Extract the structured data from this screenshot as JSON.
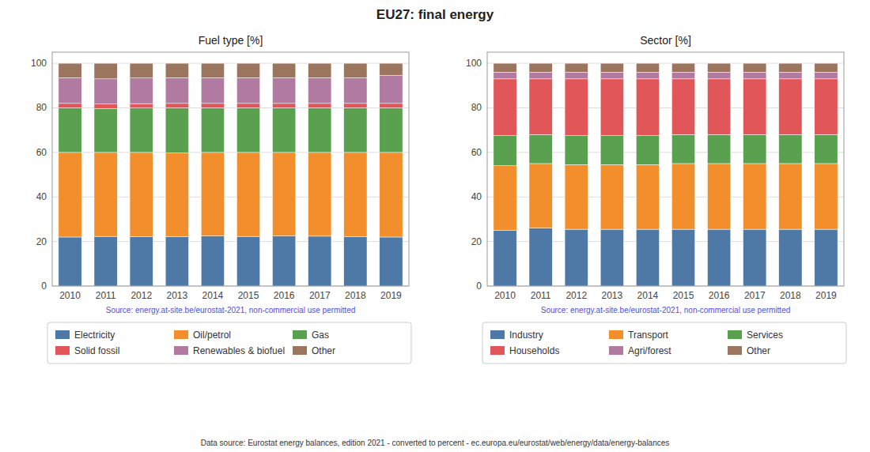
{
  "title": "EU27: final energy",
  "annotations": [
    "Data source: Eurostat energy balances, edition 2021 - converted to percent - ec.europa.eu/eurostat/web/energy/data/energy-balances"
  ],
  "chart_data": [
    {
      "type": "bar",
      "stacked": true,
      "title": "Fuel type [%]",
      "categories": [
        "2010",
        "2011",
        "2012",
        "2013",
        "2014",
        "2015",
        "2016",
        "2017",
        "2018",
        "2019"
      ],
      "series": [
        {
          "name": "Electricity",
          "values": [
            22.0,
            22.3,
            22.1,
            22.2,
            22.5,
            22.3,
            22.5,
            22.4,
            22.2,
            22.0
          ]
        },
        {
          "name": "Oil/petrol",
          "values": [
            38.0,
            37.7,
            37.9,
            37.5,
            37.5,
            37.7,
            37.5,
            37.6,
            37.8,
            38.0
          ]
        },
        {
          "name": "Gas",
          "values": [
            20.0,
            19.7,
            19.9,
            20.3,
            20.0,
            20.0,
            20.0,
            20.0,
            20.0,
            20.0
          ]
        },
        {
          "name": "Solid fossil",
          "values": [
            2.0,
            2.0,
            2.0,
            2.0,
            2.0,
            2.0,
            2.0,
            2.0,
            2.0,
            2.0
          ]
        },
        {
          "name": "Renewables & biofuel",
          "values": [
            11.5,
            11.3,
            11.5,
            11.5,
            11.5,
            11.5,
            11.5,
            11.5,
            11.5,
            12.5
          ]
        },
        {
          "name": "Other",
          "values": [
            6.5,
            7.0,
            6.6,
            6.5,
            6.5,
            6.5,
            6.5,
            6.5,
            6.5,
            5.5
          ]
        }
      ],
      "ylim": [
        0,
        105
      ],
      "yticks": [
        0,
        20,
        40,
        60,
        80,
        100
      ],
      "grid": true,
      "legend": "bottom",
      "annotations": [
        "Source: energy.at-site.be/eurostat-2021, non-commercial use permitted"
      ]
    },
    {
      "type": "bar",
      "stacked": true,
      "title": "Sector [%]",
      "categories": [
        "2010",
        "2011",
        "2012",
        "2013",
        "2014",
        "2015",
        "2016",
        "2017",
        "2018",
        "2019"
      ],
      "series": [
        {
          "name": "Industry",
          "values": [
            25.0,
            26.0,
            25.5,
            25.5,
            25.5,
            25.5,
            25.5,
            25.5,
            25.5,
            25.5
          ]
        },
        {
          "name": "Transport",
          "values": [
            29.0,
            29.0,
            29.0,
            29.0,
            29.0,
            29.5,
            29.5,
            29.5,
            29.5,
            29.5
          ]
        },
        {
          "name": "Services",
          "values": [
            13.5,
            13.0,
            13.0,
            13.0,
            13.0,
            13.0,
            13.0,
            13.0,
            13.0,
            13.0
          ]
        },
        {
          "name": "Households",
          "values": [
            25.5,
            25.0,
            25.5,
            25.5,
            25.5,
            25.0,
            25.0,
            25.0,
            25.0,
            25.0
          ]
        },
        {
          "name": "Agri/forest",
          "values": [
            3.0,
            3.0,
            3.0,
            3.0,
            3.0,
            3.0,
            3.0,
            3.0,
            3.0,
            3.0
          ]
        },
        {
          "name": "Other",
          "values": [
            4.0,
            4.0,
            4.0,
            4.0,
            4.0,
            4.0,
            4.0,
            4.0,
            4.0,
            4.0
          ]
        }
      ],
      "ylim": [
        0,
        105
      ],
      "yticks": [
        0,
        20,
        40,
        60,
        80,
        100
      ],
      "grid": true,
      "legend": "bottom",
      "annotations": [
        "Source: energy.at-site.be/eurostat-2021, non-commercial use permitted"
      ]
    }
  ]
}
